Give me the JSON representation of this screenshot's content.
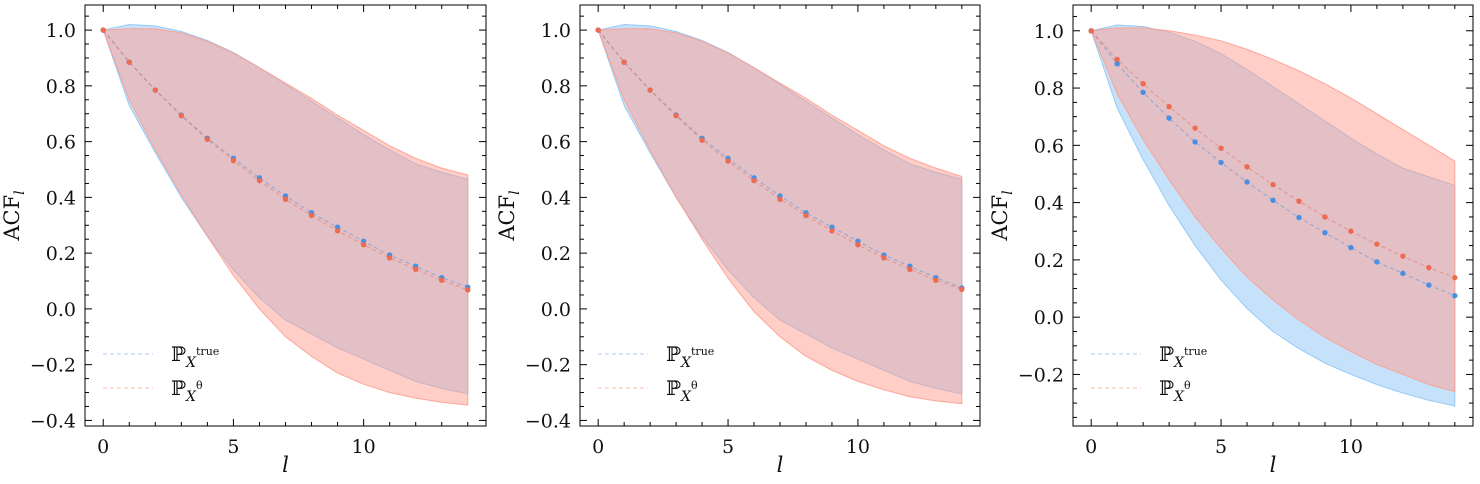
{
  "chart_data": [
    {
      "type": "line",
      "panel": "left",
      "xlabel": "l",
      "ylabel": "ACF",
      "ylabel_sub": "l",
      "xlim": [
        -0.7,
        14.7
      ],
      "ylim": [
        -0.42,
        1.09
      ],
      "x_ticks": [
        0,
        5,
        10
      ],
      "y_ticks": [
        -0.4,
        -0.2,
        0.0,
        0.2,
        0.4,
        0.6,
        0.8,
        1.0
      ],
      "x_tick_labels": [
        "0",
        "5",
        "10"
      ],
      "y_tick_labels": [
        "−0.4",
        "−0.2",
        "0.0",
        "0.2",
        "0.4",
        "0.6",
        "0.8",
        "1.0"
      ],
      "x": [
        0,
        1,
        2,
        3,
        4,
        5,
        6,
        7,
        8,
        9,
        10,
        11,
        12,
        13,
        14
      ],
      "legend_position": "lower-left",
      "series": [
        {
          "name": "P_{X^true}",
          "color": "#4a90e2",
          "band_color": "#8ec5f5",
          "values": [
            1.0,
            0.885,
            0.785,
            0.695,
            0.612,
            0.54,
            0.47,
            0.405,
            0.345,
            0.293,
            0.243,
            0.193,
            0.153,
            0.112,
            0.078
          ],
          "upper": [
            1.0,
            1.02,
            1.015,
            0.995,
            0.963,
            0.92,
            0.865,
            0.805,
            0.745,
            0.685,
            0.625,
            0.57,
            0.52,
            0.49,
            0.465
          ],
          "lower": [
            1.0,
            0.73,
            0.56,
            0.4,
            0.26,
            0.14,
            0.04,
            -0.04,
            -0.09,
            -0.14,
            -0.18,
            -0.22,
            -0.26,
            -0.285,
            -0.305
          ]
        },
        {
          "name": "P_{X^θ}",
          "color": "#ee6a50",
          "band_color": "#fd9e90",
          "values": [
            1.0,
            0.885,
            0.785,
            0.693,
            0.608,
            0.532,
            0.46,
            0.393,
            0.335,
            0.28,
            0.23,
            0.183,
            0.142,
            0.103,
            0.068
          ],
          "upper": [
            1.0,
            1.005,
            1.005,
            0.99,
            0.96,
            0.918,
            0.865,
            0.81,
            0.755,
            0.695,
            0.64,
            0.585,
            0.54,
            0.505,
            0.48
          ],
          "lower": [
            1.0,
            0.75,
            0.57,
            0.41,
            0.26,
            0.12,
            0.0,
            -0.1,
            -0.17,
            -0.23,
            -0.27,
            -0.3,
            -0.32,
            -0.335,
            -0.345
          ]
        }
      ]
    },
    {
      "type": "line",
      "panel": "middle",
      "xlabel": "l",
      "ylabel": "ACF",
      "ylabel_sub": "l",
      "xlim": [
        -0.7,
        14.7
      ],
      "ylim": [
        -0.42,
        1.09
      ],
      "x_ticks": [
        0,
        5,
        10
      ],
      "y_ticks": [
        -0.4,
        -0.2,
        0.0,
        0.2,
        0.4,
        0.6,
        0.8,
        1.0
      ],
      "x_tick_labels": [
        "0",
        "5",
        "10"
      ],
      "y_tick_labels": [
        "−0.4",
        "−0.2",
        "0.0",
        "0.2",
        "0.4",
        "0.6",
        "0.8",
        "1.0"
      ],
      "x": [
        0,
        1,
        2,
        3,
        4,
        5,
        6,
        7,
        8,
        9,
        10,
        11,
        12,
        13,
        14
      ],
      "legend_position": "lower-left",
      "series": [
        {
          "name": "P_{X^true}",
          "color": "#4a90e2",
          "band_color": "#8ec5f5",
          "values": [
            1.0,
            0.885,
            0.785,
            0.695,
            0.612,
            0.54,
            0.47,
            0.405,
            0.345,
            0.293,
            0.243,
            0.193,
            0.153,
            0.112,
            0.075
          ],
          "upper": [
            1.0,
            1.02,
            1.015,
            0.995,
            0.963,
            0.92,
            0.865,
            0.805,
            0.745,
            0.685,
            0.625,
            0.57,
            0.52,
            0.49,
            0.465
          ],
          "lower": [
            1.0,
            0.73,
            0.56,
            0.4,
            0.26,
            0.14,
            0.04,
            -0.04,
            -0.09,
            -0.14,
            -0.18,
            -0.22,
            -0.26,
            -0.285,
            -0.305
          ]
        },
        {
          "name": "P_{X^θ}",
          "color": "#ee6a50",
          "band_color": "#fd9e90",
          "values": [
            1.0,
            0.885,
            0.785,
            0.693,
            0.605,
            0.53,
            0.46,
            0.393,
            0.335,
            0.28,
            0.23,
            0.183,
            0.142,
            0.103,
            0.07
          ],
          "upper": [
            1.0,
            1.005,
            1.005,
            0.99,
            0.96,
            0.918,
            0.865,
            0.81,
            0.755,
            0.695,
            0.64,
            0.585,
            0.54,
            0.505,
            0.475
          ],
          "lower": [
            1.0,
            0.75,
            0.57,
            0.4,
            0.25,
            0.11,
            -0.01,
            -0.1,
            -0.17,
            -0.22,
            -0.26,
            -0.29,
            -0.315,
            -0.33,
            -0.34
          ]
        }
      ]
    },
    {
      "type": "line",
      "panel": "right",
      "xlabel": "l",
      "ylabel": "ACF",
      "ylabel_sub": "l",
      "xlim": [
        -0.7,
        14.7
      ],
      "ylim": [
        -0.38,
        1.09
      ],
      "x_ticks": [
        0,
        5,
        10
      ],
      "y_ticks": [
        -0.2,
        0.0,
        0.2,
        0.4,
        0.6,
        0.8,
        1.0
      ],
      "x_tick_labels": [
        "0",
        "5",
        "10"
      ],
      "y_tick_labels": [
        "−0.2",
        "0.0",
        "0.2",
        "0.4",
        "0.6",
        "0.8",
        "1.0"
      ],
      "x": [
        0,
        1,
        2,
        3,
        4,
        5,
        6,
        7,
        8,
        9,
        10,
        11,
        12,
        13,
        14
      ],
      "legend_position": "lower-left",
      "series": [
        {
          "name": "P_{X^true}",
          "color": "#4a90e2",
          "band_color": "#8ec5f5",
          "values": [
            1.0,
            0.885,
            0.785,
            0.695,
            0.612,
            0.54,
            0.472,
            0.408,
            0.348,
            0.295,
            0.243,
            0.193,
            0.153,
            0.112,
            0.075
          ],
          "upper": [
            1.0,
            1.02,
            1.015,
            0.995,
            0.963,
            0.92,
            0.865,
            0.805,
            0.745,
            0.685,
            0.625,
            0.57,
            0.52,
            0.49,
            0.46
          ],
          "lower": [
            1.0,
            0.73,
            0.55,
            0.39,
            0.25,
            0.13,
            0.03,
            -0.05,
            -0.11,
            -0.16,
            -0.2,
            -0.235,
            -0.265,
            -0.29,
            -0.31
          ]
        },
        {
          "name": "P_{X^θ}",
          "color": "#ee6a50",
          "band_color": "#fd9e90",
          "values": [
            1.0,
            0.9,
            0.815,
            0.735,
            0.66,
            0.59,
            0.525,
            0.463,
            0.405,
            0.35,
            0.3,
            0.255,
            0.213,
            0.173,
            0.138
          ],
          "upper": [
            1.0,
            1.01,
            1.01,
            1.0,
            0.985,
            0.965,
            0.935,
            0.9,
            0.86,
            0.815,
            0.765,
            0.71,
            0.655,
            0.6,
            0.545
          ],
          "lower": [
            1.0,
            0.78,
            0.62,
            0.48,
            0.35,
            0.24,
            0.14,
            0.06,
            -0.01,
            -0.07,
            -0.12,
            -0.165,
            -0.2,
            -0.235,
            -0.26
          ]
        }
      ]
    }
  ],
  "legend": {
    "series_0_main": "ℙ",
    "series_0_sub": "X",
    "series_0_sup": "true",
    "series_1_main": "ℙ",
    "series_1_sub": "X",
    "series_1_sup": "θ"
  }
}
